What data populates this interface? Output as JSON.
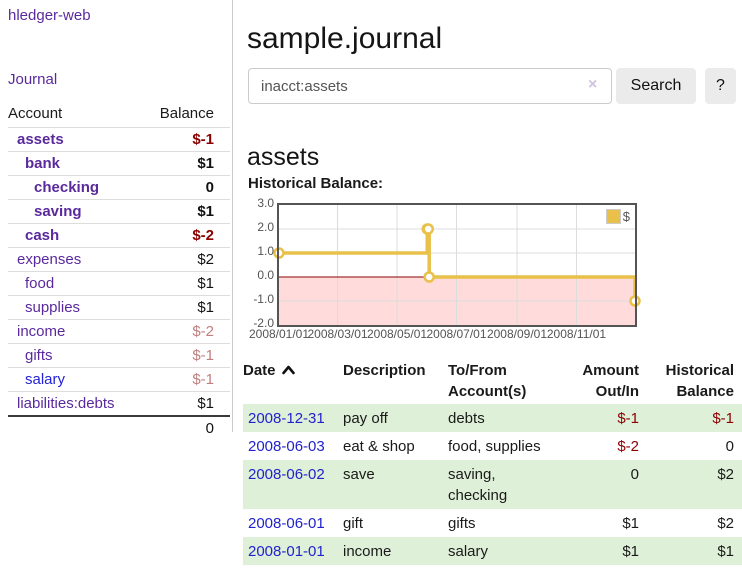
{
  "app": {
    "brand": "hledger-web"
  },
  "sidebar": {
    "nav": {
      "journal": "Journal"
    },
    "accounts": {
      "headers": {
        "account": "Account",
        "balance": "Balance"
      },
      "rows": [
        {
          "name": "assets",
          "balance": "$-1"
        },
        {
          "name": "bank",
          "balance": "$1"
        },
        {
          "name": "checking",
          "balance": "0"
        },
        {
          "name": "saving",
          "balance": "$1"
        },
        {
          "name": "cash",
          "balance": "$-2"
        },
        {
          "name": "expenses",
          "balance": "$2"
        },
        {
          "name": "food",
          "balance": "$1"
        },
        {
          "name": "supplies",
          "balance": "$1"
        },
        {
          "name": "income",
          "balance": "$-2"
        },
        {
          "name": "gifts",
          "balance": "$-1"
        },
        {
          "name": "salary",
          "balance": "$-1"
        },
        {
          "name": "liabilities:debts",
          "balance": "$1"
        }
      ],
      "total": "0"
    }
  },
  "header": {
    "title": "sample.journal"
  },
  "search": {
    "value": "inacct:assets",
    "clear_icon": "×",
    "search_label": "Search",
    "help_label": "?"
  },
  "account_page": {
    "heading": "assets",
    "chart_label": "Historical Balance:"
  },
  "chart_data": {
    "type": "line",
    "step": true,
    "title": "Historical Balance",
    "xrange": [
      "2008-01-01",
      "2008-12-31"
    ],
    "ylim": [
      -2,
      3
    ],
    "yticks": [
      {
        "v": 3,
        "label": "3.0"
      },
      {
        "v": 2,
        "label": "2.0"
      },
      {
        "v": 1,
        "label": "1.0"
      },
      {
        "v": 0,
        "label": "0.0"
      },
      {
        "v": -1,
        "label": "-1.0"
      },
      {
        "v": -2,
        "label": "-2.0"
      }
    ],
    "xticks": [
      {
        "date": "2008-01-01",
        "label": "2008/01/01"
      },
      {
        "date": "2008-03-01",
        "label": "2008/03/01"
      },
      {
        "date": "2008-05-01",
        "label": "2008/05/01"
      },
      {
        "date": "2008-07-01",
        "label": "2008/07/01"
      },
      {
        "date": "2008-09-01",
        "label": "2008/09/01"
      },
      {
        "date": "2008-11-01",
        "label": "2008/11/01"
      }
    ],
    "series": [
      {
        "name": "$",
        "color": "#e8c04a",
        "points": [
          [
            "2008-01-01",
            1
          ],
          [
            "2008-06-01",
            2
          ],
          [
            "2008-06-02",
            2
          ],
          [
            "2008-06-03",
            0
          ],
          [
            "2008-12-31",
            -1
          ]
        ]
      }
    ],
    "legend": {
      "label": "$",
      "position": "top-right"
    },
    "grid": true,
    "grid_color": "#dcdcdc",
    "zero_line_color": "#8b0000",
    "negative_region_color": "#ffdbdb",
    "border_color": "#545454"
  },
  "register": {
    "headers": {
      "date": {
        "l1": "Date",
        "l2": ""
      },
      "description": {
        "l1": "Description",
        "l2": ""
      },
      "tofrom": {
        "l1": "To/From",
        "l2": "Account(s)"
      },
      "amount": {
        "l1": "Amount",
        "l2": "Out/In"
      },
      "historical": {
        "l1": "Historical",
        "l2": "Balance"
      }
    },
    "rows": [
      {
        "date": "2008-12-31",
        "description": "pay off",
        "tofrom": "debts",
        "amount": "$-1",
        "balance": "$-1"
      },
      {
        "date": "2008-06-03",
        "description": "eat & shop",
        "tofrom": "food, supplies",
        "amount": "$-2",
        "balance": "0"
      },
      {
        "date": "2008-06-02",
        "description": "save",
        "tofrom": "saving, checking",
        "amount": "0",
        "balance": "$2"
      },
      {
        "date": "2008-06-01",
        "description": "gift",
        "tofrom": "gifts",
        "amount": "$1",
        "balance": "$2"
      },
      {
        "date": "2008-01-01",
        "description": "income",
        "tofrom": "salary",
        "amount": "$1",
        "balance": "$1"
      }
    ]
  }
}
